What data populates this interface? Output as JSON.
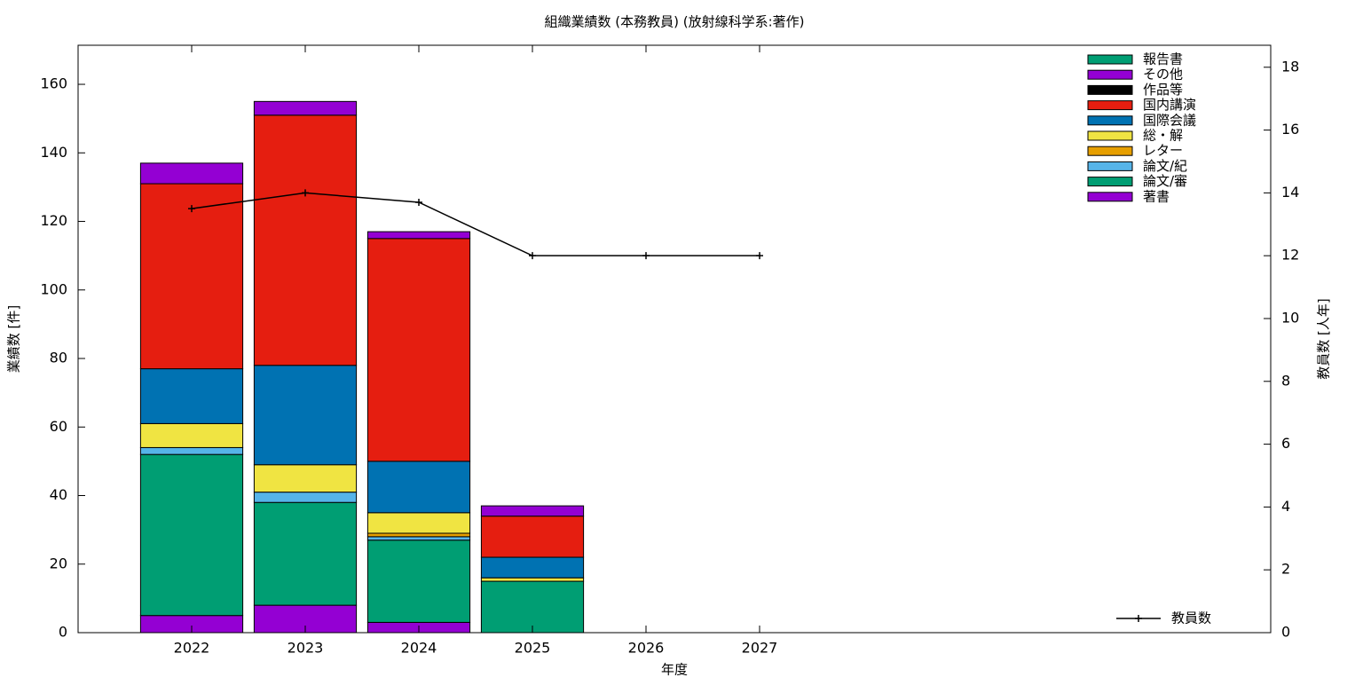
{
  "chart_data": {
    "type": "bar",
    "stacked": true,
    "title": "組織業績数 (本務教員) (放射線科学系:著作)",
    "x_label": "年度",
    "y_label": "業績数 [件]",
    "y2_label": "教員数 [人年]",
    "x": [
      2022,
      2023,
      2024,
      2025,
      2026,
      2027
    ],
    "xlim": [
      2021,
      2031.5
    ],
    "xticks": [
      2022,
      2023,
      2024,
      2025,
      2026,
      2027
    ],
    "ylim": [
      0,
      171.4
    ],
    "yticks": [
      0,
      20,
      40,
      60,
      80,
      100,
      120,
      140,
      160
    ],
    "y2lim": [
      0,
      18.7
    ],
    "y2ticks": [
      0,
      2,
      4,
      6,
      8,
      10,
      12,
      14,
      16,
      18
    ],
    "bar_width": 0.9,
    "series": [
      {
        "name": "著書",
        "color": "#9400d3",
        "values": [
          5,
          8,
          3,
          0,
          0,
          0
        ]
      },
      {
        "name": "論文/審",
        "color": "#009e73",
        "values": [
          47,
          30,
          24,
          15,
          0,
          0
        ]
      },
      {
        "name": "論文/紀",
        "color": "#56b4e9",
        "values": [
          2,
          3,
          1,
          0,
          0,
          0
        ]
      },
      {
        "name": "レター",
        "color": "#e69f00",
        "values": [
          0,
          0,
          1,
          0,
          0,
          0
        ]
      },
      {
        "name": "総・解",
        "color": "#f0e442",
        "values": [
          7,
          8,
          6,
          1,
          0,
          0
        ]
      },
      {
        "name": "国際会議",
        "color": "#0072b2",
        "values": [
          16,
          29,
          15,
          6,
          0,
          0
        ]
      },
      {
        "name": "国内講演",
        "color": "#e51e10",
        "values": [
          54,
          73,
          65,
          12,
          0,
          0
        ]
      },
      {
        "name": "作品等",
        "color": "#000000",
        "values": [
          0,
          0,
          0,
          0,
          0,
          0
        ]
      },
      {
        "name": "その他",
        "color": "#9400d3",
        "values": [
          6,
          4,
          2,
          3,
          0,
          0
        ]
      },
      {
        "name": "報告書",
        "color": "#009e73",
        "values": [
          0,
          0,
          0,
          0,
          0,
          0
        ]
      },
      {
        "name": "教員数",
        "type": "line",
        "axis": "y2",
        "color": "#000000",
        "values": [
          13.5,
          14,
          13.7,
          12,
          12,
          12
        ]
      }
    ]
  }
}
